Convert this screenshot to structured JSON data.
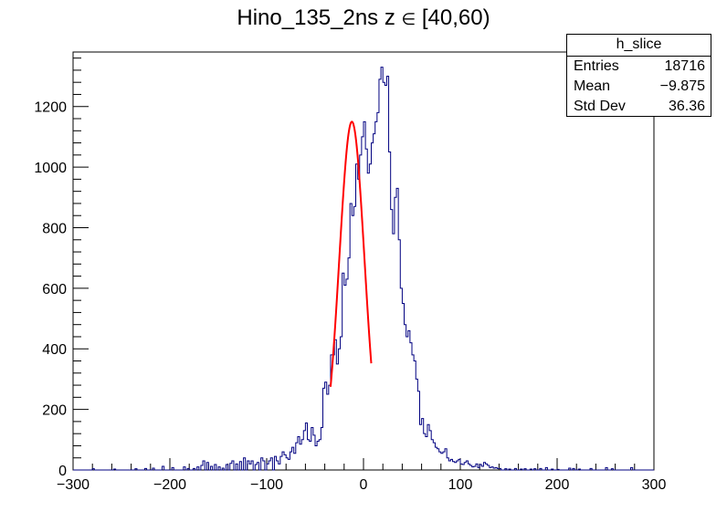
{
  "chart_data": {
    "type": "histogram",
    "title_main": "Hino_135_2ns z ",
    "title_symbol": "∈",
    "title_range": "[40,60)",
    "xlim": [
      -300,
      300
    ],
    "ylim": [
      0,
      1380
    ],
    "x_ticks": [
      -300,
      -200,
      -100,
      0,
      100,
      200,
      300
    ],
    "y_ticks": [
      0,
      200,
      400,
      600,
      800,
      1000,
      1200
    ],
    "bin_width": 2,
    "histogram_color": "#000080",
    "fit_color": "#ff0000",
    "bins": [
      [
        -280,
        4
      ],
      [
        -258,
        3
      ],
      [
        -236,
        4
      ],
      [
        -226,
        5
      ],
      [
        -218,
        6
      ],
      [
        -208,
        12
      ],
      [
        -198,
        8
      ],
      [
        -186,
        10
      ],
      [
        -182,
        5
      ],
      [
        -176,
        5
      ],
      [
        -172,
        10
      ],
      [
        -168,
        15
      ],
      [
        -166,
        30
      ],
      [
        -162,
        25
      ],
      [
        -158,
        12
      ],
      [
        -154,
        18
      ],
      [
        -150,
        10
      ],
      [
        -146,
        6
      ],
      [
        -142,
        18
      ],
      [
        -138,
        22
      ],
      [
        -136,
        30
      ],
      [
        -132,
        20
      ],
      [
        -128,
        28
      ],
      [
        -124,
        40
      ],
      [
        -120,
        30
      ],
      [
        -118,
        20
      ],
      [
        -116,
        30
      ],
      [
        -112,
        18
      ],
      [
        -110,
        25
      ],
      [
        -106,
        40
      ],
      [
        -104,
        30
      ],
      [
        -100,
        20
      ],
      [
        -98,
        30
      ],
      [
        -96,
        40
      ],
      [
        -92,
        45
      ],
      [
        -90,
        30
      ],
      [
        -88,
        20
      ],
      [
        -86,
        45
      ],
      [
        -84,
        60
      ],
      [
        -82,
        50
      ],
      [
        -80,
        40
      ],
      [
        -78,
        35
      ],
      [
        -76,
        60
      ],
      [
        -74,
        75
      ],
      [
        -72,
        55
      ],
      [
        -70,
        90
      ],
      [
        -68,
        110
      ],
      [
        -66,
        85
      ],
      [
        -64,
        100
      ],
      [
        -62,
        130
      ],
      [
        -60,
        155
      ],
      [
        -58,
        100
      ],
      [
        -56,
        95
      ],
      [
        -54,
        140
      ],
      [
        -52,
        115
      ],
      [
        -50,
        80
      ],
      [
        -48,
        95
      ],
      [
        -46,
        100
      ],
      [
        -44,
        140
      ],
      [
        -42,
        270
      ],
      [
        -40,
        290
      ],
      [
        -38,
        250
      ],
      [
        -36,
        280
      ],
      [
        -34,
        380
      ],
      [
        -32,
        380
      ],
      [
        -30,
        430
      ],
      [
        -28,
        350
      ],
      [
        -26,
        400
      ],
      [
        -24,
        440
      ],
      [
        -22,
        650
      ],
      [
        -20,
        610
      ],
      [
        -18,
        630
      ],
      [
        -16,
        700
      ],
      [
        -14,
        880
      ],
      [
        -12,
        840
      ],
      [
        -10,
        870
      ],
      [
        -8,
        1010
      ],
      [
        -6,
        960
      ],
      [
        -4,
        1040
      ],
      [
        -2,
        1100
      ],
      [
        0,
        1150
      ],
      [
        2,
        1060
      ],
      [
        4,
        980
      ],
      [
        6,
        1010
      ],
      [
        8,
        1080
      ],
      [
        10,
        1110
      ],
      [
        12,
        1150
      ],
      [
        14,
        1180
      ],
      [
        16,
        1290
      ],
      [
        18,
        1330
      ],
      [
        20,
        1280
      ],
      [
        22,
        1270
      ],
      [
        24,
        1300
      ],
      [
        26,
        1050
      ],
      [
        28,
        860
      ],
      [
        30,
        780
      ],
      [
        32,
        900
      ],
      [
        34,
        930
      ],
      [
        36,
        760
      ],
      [
        38,
        600
      ],
      [
        40,
        550
      ],
      [
        42,
        480
      ],
      [
        44,
        440
      ],
      [
        46,
        460
      ],
      [
        48,
        420
      ],
      [
        50,
        380
      ],
      [
        52,
        360
      ],
      [
        54,
        300
      ],
      [
        56,
        260
      ],
      [
        58,
        150
      ],
      [
        60,
        170
      ],
      [
        62,
        120
      ],
      [
        64,
        110
      ],
      [
        66,
        150
      ],
      [
        68,
        130
      ],
      [
        70,
        100
      ],
      [
        72,
        90
      ],
      [
        74,
        75
      ],
      [
        76,
        70
      ],
      [
        78,
        60
      ],
      [
        80,
        55
      ],
      [
        82,
        60
      ],
      [
        84,
        70
      ],
      [
        86,
        40
      ],
      [
        88,
        30
      ],
      [
        90,
        35
      ],
      [
        92,
        28
      ],
      [
        94,
        25
      ],
      [
        96,
        30
      ],
      [
        98,
        35
      ],
      [
        100,
        20
      ],
      [
        102,
        18
      ],
      [
        104,
        25
      ],
      [
        106,
        30
      ],
      [
        108,
        20
      ],
      [
        110,
        15
      ],
      [
        112,
        10
      ],
      [
        114,
        12
      ],
      [
        116,
        20
      ],
      [
        118,
        8
      ],
      [
        120,
        18
      ],
      [
        122,
        12
      ],
      [
        124,
        25
      ],
      [
        126,
        20
      ],
      [
        128,
        15
      ],
      [
        130,
        8
      ],
      [
        132,
        10
      ],
      [
        134,
        6
      ],
      [
        136,
        8
      ],
      [
        138,
        5
      ],
      [
        140,
        5
      ],
      [
        146,
        4
      ],
      [
        150,
        3
      ],
      [
        156,
        5
      ],
      [
        162,
        3
      ],
      [
        166,
        4
      ],
      [
        172,
        3
      ],
      [
        176,
        4
      ],
      [
        182,
        5
      ],
      [
        188,
        8
      ],
      [
        194,
        3
      ],
      [
        200,
        2
      ],
      [
        212,
        6
      ],
      [
        216,
        5
      ],
      [
        222,
        3
      ],
      [
        234,
        5
      ],
      [
        250,
        8
      ],
      [
        256,
        4
      ],
      [
        276,
        8
      ]
    ],
    "fit": {
      "function": "gaus",
      "constant": 1150,
      "mean": -12,
      "sigma": 13,
      "range": [
        -34,
        8
      ]
    }
  },
  "stats": {
    "name": "h_slice",
    "rows": [
      {
        "label": "Entries",
        "value": "18716"
      },
      {
        "label": "Mean",
        "value": "−9.875"
      },
      {
        "label": "Std Dev",
        "value": "36.36"
      }
    ]
  }
}
